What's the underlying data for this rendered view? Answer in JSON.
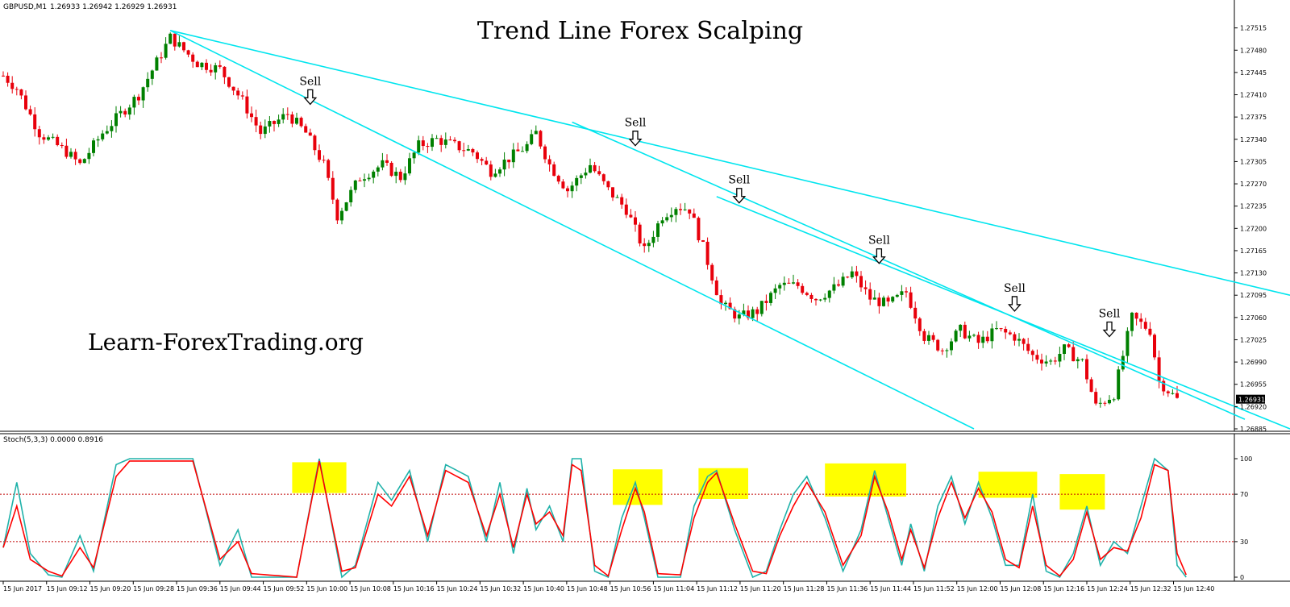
{
  "window": {
    "symbol_label": "GBPUSD,M1",
    "ohlc_label": "1.26933 1.26942 1.26929 1.26931",
    "indicator_label": "Stoch(5,3,3) 0.0000 0.8916"
  },
  "annotations": {
    "title": "Trend Line Forex Scalping",
    "site": "Learn-ForexTrading.org",
    "sell_label": "Sell"
  },
  "colors": {
    "bull": "#008000",
    "bear": "#e8000b",
    "trendline": "#00e5ee",
    "stoch_main": "#20b2aa",
    "stoch_signal": "#ff0000",
    "level": "#c00000",
    "highlight": "#ffff00"
  },
  "chart_data": [
    {
      "type": "candlestick",
      "ylim": [
        1.26885,
        1.27531
      ],
      "y_ticks": [
        "1.27515",
        "1.27480",
        "1.27445",
        "1.27410",
        "1.27375",
        "1.27340",
        "1.27305",
        "1.27270",
        "1.27235",
        "1.27200",
        "1.27165",
        "1.27130",
        "1.27095",
        "1.27060",
        "1.27025",
        "1.26990",
        "1.26955",
        "1.26920",
        "1.26885"
      ],
      "current_price": "1.26931",
      "x_ticks": [
        "15 Jun 2017",
        "15 Jun 09:12",
        "15 Jun 09:20",
        "15 Jun 09:28",
        "15 Jun 09:36",
        "15 Jun 09:44",
        "15 Jun 09:52",
        "15 Jun 10:00",
        "15 Jun 10:08",
        "15 Jun 10:16",
        "15 Jun 10:24",
        "15 Jun 10:32",
        "15 Jun 10:40",
        "15 Jun 10:48",
        "15 Jun 10:56",
        "15 Jun 11:04",
        "15 Jun 11:12",
        "15 Jun 11:20",
        "15 Jun 11:28",
        "15 Jun 11:36",
        "15 Jun 11:44",
        "15 Jun 11:52",
        "15 Jun 12:00",
        "15 Jun 12:08",
        "15 Jun 12:16",
        "15 Jun 12:24",
        "15 Jun 12:32",
        "15 Jun 12:40"
      ],
      "close_anchors": [
        [
          0,
          1.2744
        ],
        [
          3,
          1.2742
        ],
        [
          8,
          1.2735
        ],
        [
          14,
          1.2732
        ],
        [
          17,
          1.273
        ],
        [
          22,
          1.2735
        ],
        [
          30,
          1.2741
        ],
        [
          37,
          1.275
        ],
        [
          43,
          1.2746
        ],
        [
          48,
          1.2745
        ],
        [
          53,
          1.274
        ],
        [
          57,
          1.2735
        ],
        [
          63,
          1.2738
        ],
        [
          67,
          1.2735
        ],
        [
          71,
          1.273
        ],
        [
          74,
          1.2722
        ],
        [
          79,
          1.2728
        ],
        [
          84,
          1.273
        ],
        [
          88,
          1.2728
        ],
        [
          92,
          1.2733
        ],
        [
          96,
          1.2734
        ],
        [
          100,
          1.2733
        ],
        [
          104,
          1.2732
        ],
        [
          108,
          1.2729
        ],
        [
          112,
          1.2731
        ],
        [
          116,
          1.2733
        ],
        [
          118,
          1.2735
        ],
        [
          121,
          1.273
        ],
        [
          125,
          1.2726
        ],
        [
          130,
          1.273
        ],
        [
          134,
          1.2726
        ],
        [
          138,
          1.2723
        ],
        [
          142,
          1.27165
        ],
        [
          146,
          1.2722
        ],
        [
          149,
          1.27235
        ],
        [
          152,
          1.2723
        ],
        [
          155,
          1.2717
        ],
        [
          159,
          1.2708
        ],
        [
          163,
          1.2706
        ],
        [
          167,
          1.2707
        ],
        [
          172,
          1.2711
        ],
        [
          176,
          1.2711
        ],
        [
          180,
          1.2709
        ],
        [
          185,
          1.2711
        ],
        [
          188,
          1.2713
        ],
        [
          192,
          1.2709
        ],
        [
          196,
          1.2708
        ],
        [
          200,
          1.271
        ],
        [
          204,
          1.2703
        ],
        [
          208,
          1.2701
        ],
        [
          212,
          1.2704
        ],
        [
          216,
          1.2702
        ],
        [
          220,
          1.2704
        ],
        [
          224,
          1.2703
        ],
        [
          228,
          1.27
        ],
        [
          232,
          1.2699
        ],
        [
          235,
          1.2701
        ],
        [
          239,
          1.2699
        ],
        [
          242,
          1.2692
        ],
        [
          246,
          1.2694
        ],
        [
          250,
          1.2706
        ],
        [
          254,
          1.2704
        ],
        [
          256,
          1.2696
        ],
        [
          260,
          1.26931
        ]
      ],
      "trend_lines": [
        {
          "from": [
            37,
            1.27511
          ],
          "to": [
            215,
            1.26885
          ]
        },
        {
          "from": [
            37,
            1.27511
          ],
          "to": [
            285,
            1.27095
          ]
        },
        {
          "from": [
            126,
            1.27367
          ],
          "to": [
            275,
            1.269
          ]
        },
        {
          "from": [
            158,
            1.2725
          ],
          "to": [
            285,
            1.26885
          ]
        }
      ],
      "sell_signals": [
        {
          "bar": 68,
          "price": 1.27395
        },
        {
          "bar": 140,
          "price": 1.2733
        },
        {
          "bar": 163,
          "price": 1.2724
        },
        {
          "bar": 194,
          "price": 1.27145
        },
        {
          "bar": 224,
          "price": 1.2707
        },
        {
          "bar": 245,
          "price": 1.2703
        }
      ]
    },
    {
      "type": "line",
      "ylim": [
        0,
        100
      ],
      "y_ticks": [
        "100",
        "70",
        "30",
        "0"
      ],
      "levels": [
        70,
        30
      ],
      "series": [
        {
          "key": "main",
          "anchors": [
            [
              0,
              25
            ],
            [
              3,
              80
            ],
            [
              6,
              20
            ],
            [
              10,
              2
            ],
            [
              13,
              0
            ],
            [
              17,
              35
            ],
            [
              20,
              5
            ],
            [
              25,
              95
            ],
            [
              28,
              100
            ],
            [
              42,
              100
            ],
            [
              48,
              10
            ],
            [
              52,
              40
            ],
            [
              55,
              0
            ],
            [
              65,
              0
            ],
            [
              70,
              100
            ],
            [
              75,
              0
            ],
            [
              78,
              10
            ],
            [
              83,
              80
            ],
            [
              86,
              65
            ],
            [
              90,
              90
            ],
            [
              94,
              30
            ],
            [
              98,
              95
            ],
            [
              103,
              85
            ],
            [
              107,
              30
            ],
            [
              110,
              80
            ],
            [
              113,
              20
            ],
            [
              116,
              75
            ],
            [
              118,
              40
            ],
            [
              121,
              60
            ],
            [
              124,
              30
            ],
            [
              126,
              100
            ],
            [
              128,
              100
            ],
            [
              131,
              5
            ],
            [
              134,
              0
            ],
            [
              137,
              50
            ],
            [
              140,
              80
            ],
            [
              142,
              50
            ],
            [
              145,
              0
            ],
            [
              150,
              0
            ],
            [
              153,
              60
            ],
            [
              156,
              85
            ],
            [
              158,
              90
            ],
            [
              162,
              40
            ],
            [
              166,
              0
            ],
            [
              169,
              5
            ],
            [
              172,
              40
            ],
            [
              175,
              70
            ],
            [
              178,
              85
            ],
            [
              182,
              50
            ],
            [
              186,
              5
            ],
            [
              190,
              40
            ],
            [
              193,
              90
            ],
            [
              196,
              50
            ],
            [
              199,
              10
            ],
            [
              201,
              45
            ],
            [
              204,
              5
            ],
            [
              207,
              60
            ],
            [
              210,
              85
            ],
            [
              213,
              45
            ],
            [
              216,
              80
            ],
            [
              219,
              50
            ],
            [
              222,
              10
            ],
            [
              225,
              10
            ],
            [
              228,
              70
            ],
            [
              231,
              5
            ],
            [
              234,
              0
            ],
            [
              237,
              20
            ],
            [
              240,
              60
            ],
            [
              243,
              10
            ],
            [
              246,
              30
            ],
            [
              249,
              20
            ],
            [
              252,
              60
            ],
            [
              255,
              100
            ],
            [
              258,
              90
            ],
            [
              260,
              10
            ],
            [
              262,
              0
            ]
          ]
        },
        {
          "key": "signal",
          "anchors": [
            [
              0,
              25
            ],
            [
              3,
              60
            ],
            [
              6,
              15
            ],
            [
              10,
              5
            ],
            [
              13,
              1
            ],
            [
              17,
              25
            ],
            [
              20,
              8
            ],
            [
              25,
              85
            ],
            [
              28,
              98
            ],
            [
              42,
              98
            ],
            [
              48,
              15
            ],
            [
              52,
              30
            ],
            [
              55,
              3
            ],
            [
              65,
              0
            ],
            [
              70,
              98
            ],
            [
              75,
              5
            ],
            [
              78,
              8
            ],
            [
              83,
              70
            ],
            [
              86,
              60
            ],
            [
              90,
              85
            ],
            [
              94,
              35
            ],
            [
              98,
              90
            ],
            [
              103,
              80
            ],
            [
              107,
              35
            ],
            [
              110,
              70
            ],
            [
              113,
              25
            ],
            [
              116,
              70
            ],
            [
              118,
              45
            ],
            [
              121,
              55
            ],
            [
              124,
              35
            ],
            [
              126,
              95
            ],
            [
              128,
              90
            ],
            [
              131,
              10
            ],
            [
              134,
              1
            ],
            [
              137,
              40
            ],
            [
              140,
              75
            ],
            [
              142,
              55
            ],
            [
              145,
              3
            ],
            [
              150,
              2
            ],
            [
              153,
              50
            ],
            [
              156,
              80
            ],
            [
              158,
              88
            ],
            [
              162,
              45
            ],
            [
              166,
              5
            ],
            [
              169,
              3
            ],
            [
              172,
              35
            ],
            [
              175,
              60
            ],
            [
              178,
              80
            ],
            [
              182,
              55
            ],
            [
              186,
              10
            ],
            [
              190,
              35
            ],
            [
              193,
              85
            ],
            [
              196,
              55
            ],
            [
              199,
              15
            ],
            [
              201,
              40
            ],
            [
              204,
              8
            ],
            [
              207,
              50
            ],
            [
              210,
              80
            ],
            [
              213,
              50
            ],
            [
              216,
              75
            ],
            [
              219,
              55
            ],
            [
              222,
              15
            ],
            [
              225,
              8
            ],
            [
              228,
              60
            ],
            [
              231,
              10
            ],
            [
              234,
              1
            ],
            [
              237,
              15
            ],
            [
              240,
              55
            ],
            [
              243,
              15
            ],
            [
              246,
              25
            ],
            [
              249,
              22
            ],
            [
              252,
              50
            ],
            [
              255,
              95
            ],
            [
              258,
              90
            ],
            [
              260,
              20
            ],
            [
              262,
              2
            ]
          ]
        }
      ],
      "highlight_zones": [
        {
          "from_bar": 64,
          "to_bar": 76,
          "y_top": 97,
          "y_bottom": 71
        },
        {
          "from_bar": 135,
          "to_bar": 146,
          "y_top": 91,
          "y_bottom": 61
        },
        {
          "from_bar": 154,
          "to_bar": 165,
          "y_top": 92,
          "y_bottom": 66
        },
        {
          "from_bar": 182,
          "to_bar": 200,
          "y_top": 96,
          "y_bottom": 68
        },
        {
          "from_bar": 216,
          "to_bar": 229,
          "y_top": 89,
          "y_bottom": 67
        },
        {
          "from_bar": 234,
          "to_bar": 244,
          "y_top": 87,
          "y_bottom": 57
        }
      ]
    }
  ]
}
